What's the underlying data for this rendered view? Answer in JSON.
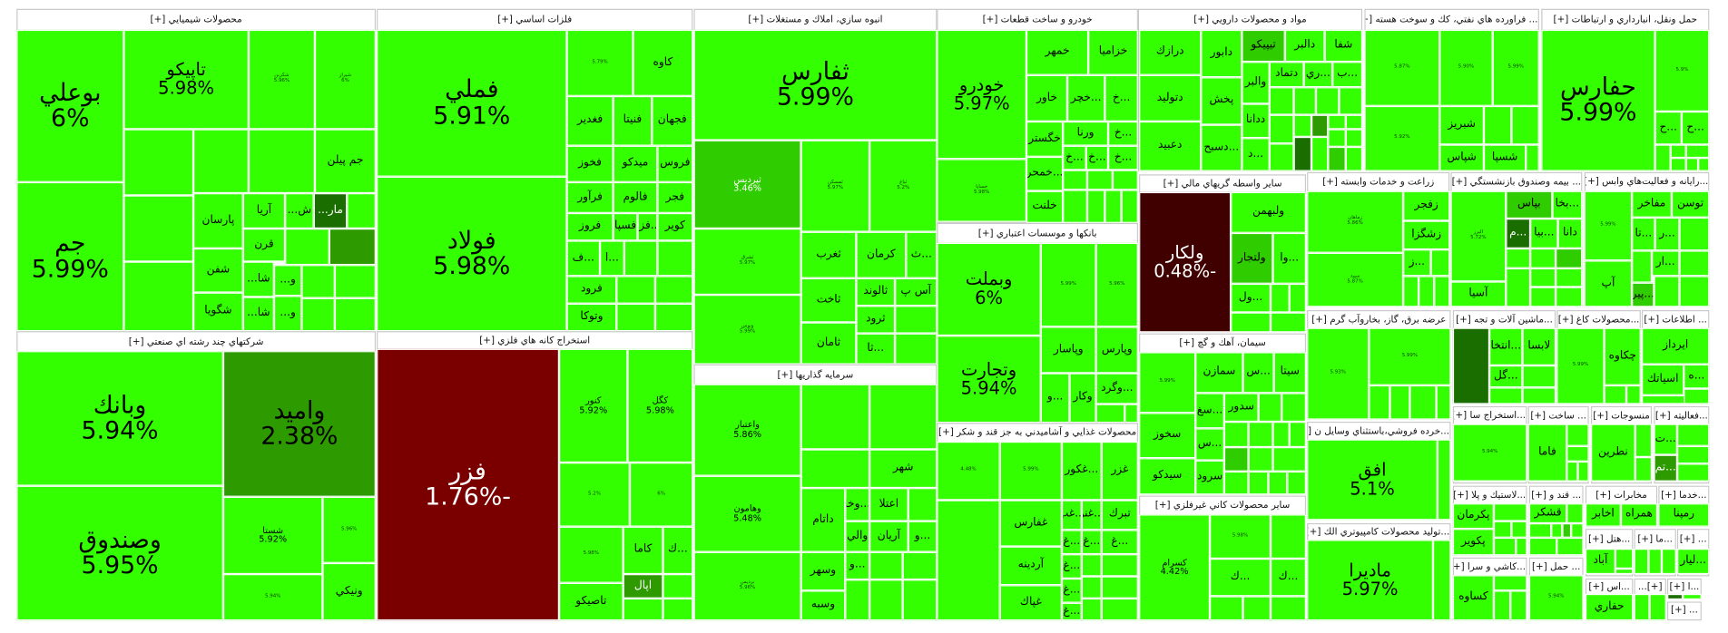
{
  "colors": {
    "up": "#33ff00",
    "mild": "#2fcc00",
    "mid": "#2d9a00",
    "dark": "#1a6e00",
    "down": "#7a0000",
    "deep": "#400000"
  },
  "sectors": [
    {
      "title": "محصولات شيميايي [+]",
      "tiles": [
        {
          "l": "بوعلي",
          "p": "6%"
        },
        {
          "l": "جم",
          "p": "5.99%"
        },
        {
          "l": "تاپيكو",
          "p": "5.98%"
        },
        {
          "l": "شكربن",
          "p": "5.96%"
        },
        {
          "l": "شيراز",
          "p": "6%"
        },
        {
          "l": "جم پيلن"
        },
        {
          "l": "پارسان"
        },
        {
          "l": "آريا"
        },
        {
          "l": "ش..."
        },
        {
          "l": "مار...",
          "c": "#1a6e00"
        },
        {
          "l": "شفن"
        },
        {
          "l": "شگويا"
        },
        {
          "l": "قرن"
        },
        {
          "l": "شا..."
        },
        {
          "l": "شا..."
        },
        {
          "l": "و..."
        },
        {
          "l": "و..."
        }
      ]
    },
    {
      "title": "شركتهاي چند رشته اي صنعتي [+]",
      "tiles": [
        {
          "l": "وبانك",
          "p": "5.94%"
        },
        {
          "l": "وصندوق",
          "p": "5.95%"
        },
        {
          "l": "واميد",
          "p": "2.38%",
          "c": "#2d9a00"
        },
        {
          "l": "شستا",
          "p": "5.92%"
        },
        {
          "l": "ونيكي"
        },
        {
          "p": "5.96%"
        },
        {
          "p": "5.94%"
        }
      ]
    },
    {
      "title": "فلزات اساسي [+]",
      "tiles": [
        {
          "l": "فملي",
          "p": "5.91%"
        },
        {
          "l": "فولاد",
          "p": "5.98%"
        },
        {
          "p": "5.79%"
        },
        {
          "l": "كاوه"
        },
        {
          "l": "فغدير"
        },
        {
          "l": "فنيتا"
        },
        {
          "l": "فجهان"
        },
        {
          "l": "فخوز"
        },
        {
          "l": "ميدكو"
        },
        {
          "l": "فروس"
        },
        {
          "l": "فرآور"
        },
        {
          "l": "فالوم"
        },
        {
          "l": "فجر"
        },
        {
          "l": "فروز"
        },
        {
          "l": "فسپا"
        },
        {
          "l": "...فزر"
        },
        {
          "l": "كوير"
        },
        {
          "l": "...ف"
        },
        {
          "l": "...ا"
        },
        {
          "l": "فرود"
        },
        {
          "l": "وتوكا"
        }
      ]
    },
    {
      "title": "استخراج كانه هاي فلزي [+]",
      "tiles": [
        {
          "l": "فزر",
          "p": "-1.76%",
          "c": "#7a0000"
        },
        {
          "l": "كنور",
          "p": "5.92%"
        },
        {
          "l": "كگل",
          "p": "5.98%"
        },
        {
          "p": "5.2%"
        },
        {
          "p": "6%"
        },
        {
          "p": "5.98%"
        },
        {
          "l": "كاما"
        },
        {
          "l": "...ك"
        },
        {
          "l": "تاصيكو"
        },
        {
          "l": "اپال",
          "c": "#2d9a00"
        }
      ]
    },
    {
      "title": "انبوه سازي، املاك و مستغلات [+]",
      "tiles": [
        {
          "l": "ثفارس",
          "p": "5.99%"
        },
        {
          "l": "ثپرديس",
          "p": "3.46%",
          "c": "#2fcc00"
        },
        {
          "l": "ثشرق",
          "p": "5.97%"
        },
        {
          "l": "ونوس",
          "p": "5.99%"
        },
        {
          "l": "ثمسكن",
          "p": "5.97%"
        },
        {
          "l": "ثباغ",
          "p": "5.2%"
        },
        {
          "l": "ثغرب"
        },
        {
          "l": "كرمان"
        },
        {
          "l": "...ث"
        },
        {
          "l": "ثاخت"
        },
        {
          "l": "ثالوند"
        },
        {
          "l": "آس پ"
        },
        {
          "l": "ثامان"
        },
        {
          "l": "ثرود"
        },
        {
          "l": "...ثا"
        }
      ]
    },
    {
      "title": "سرمايه گذاريها [+]",
      "tiles": [
        {
          "l": "واعتبار",
          "p": "5.86%"
        },
        {
          "l": "وهامون",
          "p": "5.48%"
        },
        {
          "l": "برديس",
          "p": "5.96%"
        },
        {
          "l": "شهر"
        },
        {
          "l": "داتام"
        },
        {
          "l": "...وخا"
        },
        {
          "l": "اعتلا"
        },
        {
          "l": "والي"
        },
        {
          "l": "آريان"
        },
        {
          "l": "...و"
        },
        {
          "l": "وسهر"
        },
        {
          "l": "...و"
        },
        {
          "l": "وسبه"
        }
      ]
    },
    {
      "title": "خودرو و ساخت قطعات [+]",
      "tiles": [
        {
          "l": "خودرو",
          "p": "5.97%"
        },
        {
          "l": "خساپا",
          "p": "5.98%"
        },
        {
          "l": "خمهر"
        },
        {
          "l": "خزاميا"
        },
        {
          "l": "خاور"
        },
        {
          "l": "...خچر"
        },
        {
          "l": "...خ"
        },
        {
          "l": "خگستر"
        },
        {
          "l": "ورنا"
        },
        {
          "l": "...خ"
        },
        {
          "l": "...خ"
        },
        {
          "l": "...خ"
        },
        {
          "l": "...خ"
        },
        {
          "l": "...خمحر"
        },
        {
          "l": "خلنت"
        }
      ]
    },
    {
      "title": "بانكها و موسسات اعتباري [+]",
      "tiles": [
        {
          "l": "وبملت",
          "p": "6%"
        },
        {
          "p": "5.99%"
        },
        {
          "p": "5.96%"
        },
        {
          "l": "وتجارت",
          "p": "5.94%"
        },
        {
          "l": "وپاسار"
        },
        {
          "l": "وپارس"
        },
        {
          "l": "...و"
        },
        {
          "l": "وكار"
        },
        {
          "l": "...وگرد"
        }
      ]
    },
    {
      "title": "محصولات غذايي و آشاميدني به جز قند و شكر [+]",
      "tiles": [
        {
          "p": "4.48%"
        },
        {
          "p": "5.99%"
        },
        {
          "l": "...غكور"
        },
        {
          "l": "غزر"
        },
        {
          "l": "غفارس"
        },
        {
          "l": "آردينه"
        },
        {
          "l": "غپاك"
        },
        {
          "l": "تبرك"
        },
        {
          "l": "...غنو"
        },
        {
          "l": "...غب"
        },
        {
          "l": "...غ"
        },
        {
          "l": "...غ"
        },
        {
          "l": "...غ"
        },
        {
          "l": "...غ"
        },
        {
          "l": "...غ"
        },
        {
          "l": "...غ"
        }
      ]
    },
    {
      "title": "مواد و محصولات دارويي [+]",
      "tiles": [
        {
          "l": "درازك"
        },
        {
          "l": "دتوليد"
        },
        {
          "l": "دعبيد"
        },
        {
          "l": "دابور"
        },
        {
          "l": "پخش"
        },
        {
          "l": "...دسبح"
        },
        {
          "l": "تيپيكو",
          "c": "#2fcc00"
        },
        {
          "l": "دالبر"
        },
        {
          "l": "شفا"
        },
        {
          "l": "والبر"
        },
        {
          "l": "دتماد"
        },
        {
          "l": "...ري"
        },
        {
          "l": "...ب"
        },
        {
          "l": "ددانا"
        },
        {
          "l": "...د"
        }
      ]
    },
    {
      "title": "ساير واسطه گريهاي مالي [+]",
      "tiles": [
        {
          "l": "ولكار",
          "p": "-0.48%",
          "c": "#400000"
        },
        {
          "l": "ولبهمن"
        },
        {
          "l": "ولتجار",
          "c": "#2fcc00"
        },
        {
          "l": "...وا"
        },
        {
          "l": "...ول"
        }
      ]
    },
    {
      "title": "سيمان، آهك و گچ [+]",
      "tiles": [
        {
          "p": "5.99%"
        },
        {
          "l": "سخوز"
        },
        {
          "l": "سيدكو"
        },
        {
          "l": "سمازن"
        },
        {
          "l": "...س"
        },
        {
          "l": "سيتا"
        },
        {
          "l": "...سغ"
        },
        {
          "l": "سدور"
        },
        {
          "l": "...س"
        },
        {
          "l": "سرود"
        }
      ]
    },
    {
      "title": "ساير محصولات كاني غيرفلزي [+]",
      "tiles": [
        {
          "l": "كسرام",
          "p": "4.42%"
        },
        {
          "p": "5.98%"
        },
        {
          "l": "...ك"
        },
        {
          "l": "...ك"
        }
      ]
    },
    {
      "title": "... فراورده هاي نفتي، كك و سوخت هسته [+]",
      "tiles": [
        {
          "p": "5.87%"
        },
        {
          "p": "5.92%"
        },
        {
          "p": "5.90%"
        },
        {
          "p": "5.99%"
        },
        {
          "l": "شبريز"
        },
        {
          "l": "شپاس"
        },
        {
          "l": "شسپا"
        }
      ]
    },
    {
      "title": "حمل ونقل، انبارداري و ارتباطات [+]",
      "tiles": [
        {
          "l": "حفارس",
          "p": "5.99%"
        },
        {
          "p": "5.9%"
        },
        {
          "l": "...ح"
        },
        {
          "l": "...ح"
        }
      ]
    },
    {
      "title": "زراعت و خدمات وابسته [+]",
      "tiles": [
        {
          "l": "زماهان",
          "p": "5.86%"
        },
        {
          "l": "سپيد",
          "p": "5.87%"
        },
        {
          "l": "زفجر"
        },
        {
          "l": "زشگزا"
        },
        {
          "l": "...ز"
        }
      ]
    },
    {
      "title": "... بيمه وصندوق بازنشستگي [+]",
      "tiles": [
        {
          "l": "البرز",
          "p": "5.72%"
        },
        {
          "l": "آسيا"
        },
        {
          "l": "بپاس",
          "c": "#2fcc00"
        },
        {
          "l": "...بخا"
        },
        {
          "l": "...م",
          "c": "#1a6e00"
        },
        {
          "l": "...بيا"
        },
        {
          "l": "دانا"
        }
      ]
    },
    {
      "title": "...رايانه و فعاليت‌هاي وابس [+]",
      "tiles": [
        {
          "p": "5.99%"
        },
        {
          "l": "آپ"
        },
        {
          "l": "مفاخر"
        },
        {
          "l": "توسن"
        },
        {
          "l": "...تا"
        },
        {
          "l": "...ر"
        },
        {
          "l": "...ار"
        },
        {
          "l": "...پير",
          "c": "#2fcc00"
        }
      ]
    },
    {
      "title": "عرضه برق، گاز، بخاروآب گرم [+]",
      "tiles": [
        {
          "p": "5.93%"
        },
        {
          "p": "5.99%"
        }
      ]
    },
    {
      "title": "...خرده فروشي،باستثناي وسايل ن [+]",
      "tiles": [
        {
          "l": "افق",
          "p": "5.1%"
        }
      ]
    },
    {
      "title": "...توليد محصولات كامپيوتري الك [+]",
      "tiles": [
        {
          "l": "ماديرا",
          "p": "5.97%"
        }
      ]
    },
    {
      "title": "...ماشين آلات و تجه [+]",
      "tiles": [
        {
          "l": "...انتخا"
        },
        {
          "l": "لابسا"
        },
        {
          "l": "...گل"
        }
      ]
    },
    {
      "title": "...محصولات كاغ [+]",
      "tiles": [
        {
          "p": "5.99%"
        },
        {
          "l": "چكاوه"
        }
      ]
    },
    {
      "title": "... اطلاعات [+]",
      "tiles": [
        {
          "l": "ايرداز"
        },
        {
          "l": "اسياتك"
        },
        {
          "l": "...ه"
        }
      ]
    },
    {
      "title": "...استخراج سا [+]",
      "tiles": [
        {
          "p": "5.94%"
        }
      ]
    },
    {
      "title": "... ساخت [+]",
      "tiles": [
        {
          "l": "فاما"
        }
      ]
    },
    {
      "title": "منسوجات [+]",
      "tiles": [
        {
          "l": "نطرين"
        }
      ]
    },
    {
      "title": "...فعاليته [+]",
      "tiles": [
        {
          "l": "...ت"
        },
        {
          "l": "...تم",
          "c": "#2d9a00"
        }
      ]
    },
    {
      "title": "...لاستيك و پلا [+]",
      "tiles": [
        {
          "l": "پكرمان"
        },
        {
          "l": "پكوير"
        }
      ]
    },
    {
      "title": "... قند و [+]",
      "tiles": [
        {
          "l": "قشكر"
        }
      ]
    },
    {
      "title": "مخابرات [+]",
      "tiles": [
        {
          "l": "اخابر"
        },
        {
          "l": "همراه"
        }
      ]
    },
    {
      "title": "...خدما [+]",
      "tiles": [
        {
          "l": "رمپنا"
        }
      ]
    },
    {
      "title": "...كاشي و سرا [+]",
      "tiles": [
        {
          "l": "كساوه"
        }
      ]
    },
    {
      "title": "... حمل [+]",
      "tiles": [
        {
          "p": "5.94%"
        }
      ]
    },
    {
      "title": "...هتل [+]",
      "tiles": [
        {
          "l": "آباد"
        }
      ]
    },
    {
      "title": "...ما [+]",
      "tiles": []
    },
    {
      "title": "... [+]",
      "tiles": [
        {
          "l": "...ليار"
        }
      ]
    },
    {
      "title": "...اس [+]",
      "tiles": [
        {
          "l": "حفاري"
        }
      ]
    },
    {
      "title": "[+]...",
      "tiles": []
    },
    {
      "title": "...ا [+]",
      "tiles": []
    },
    {
      "title": "... [+]",
      "tiles": []
    }
  ]
}
